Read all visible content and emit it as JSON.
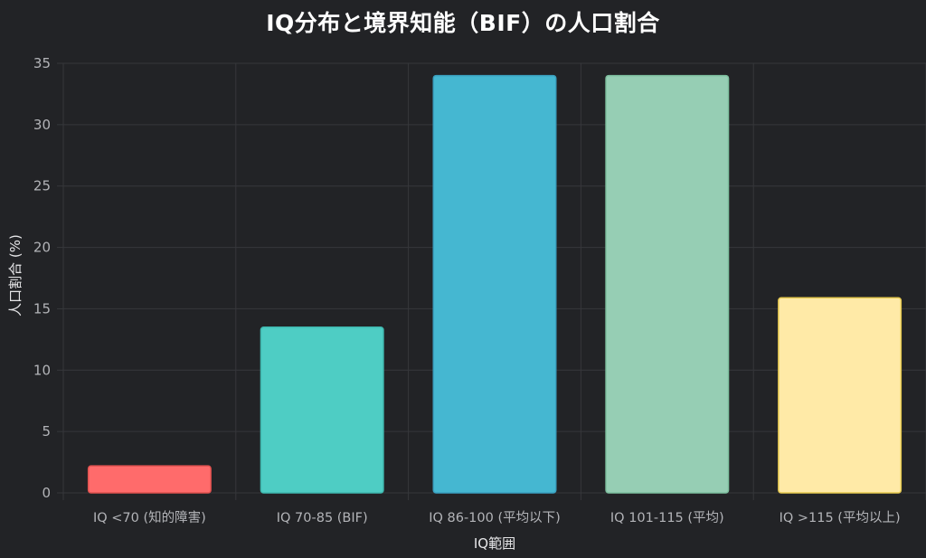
{
  "chart_data": {
    "type": "bar",
    "title": "IQ分布と境界知能（BIF）の人口割合",
    "xlabel": "IQ範囲",
    "ylabel": "人口割合 (%)",
    "categories": [
      "IQ <70 (知的障害)",
      "IQ 70-85 (BIF)",
      "IQ 86-100 (平均以下)",
      "IQ 101-115 (平均)",
      "IQ >115 (平均以上)"
    ],
    "values": [
      2.2,
      13.5,
      34,
      34,
      15.9
    ],
    "colors": [
      "#ff6b6b",
      "#4ecdc4",
      "#45b7d1",
      "#96ceb4",
      "#ffeaa7"
    ],
    "border_colors": [
      "#e0524f",
      "#3fb8af",
      "#3aa0c0",
      "#7dbf9e",
      "#e6c94f"
    ],
    "ylim": [
      0,
      35
    ],
    "yticks": [
      0,
      5,
      10,
      15,
      20,
      25,
      30,
      35
    ],
    "grid": true,
    "legend": "none"
  }
}
